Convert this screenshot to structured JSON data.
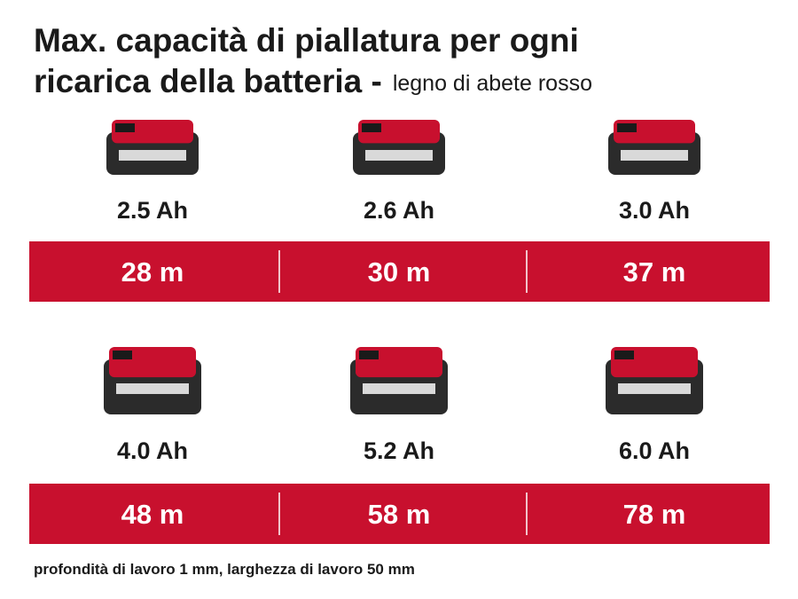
{
  "title_lines": [
    "Max. capacità di piallatura per ogni",
    "ricarica della batteria -"
  ],
  "subtitle": "legno di abete rosso",
  "rows": [
    {
      "items": [
        {
          "capacity": "2.5 Ah",
          "result": "28 m"
        },
        {
          "capacity": "2.6 Ah",
          "result": "30 m"
        },
        {
          "capacity": "3.0 Ah",
          "result": "37 m"
        }
      ]
    },
    {
      "items": [
        {
          "capacity": "4.0 Ah",
          "result": "48 m"
        },
        {
          "capacity": "5.2 Ah",
          "result": "58 m"
        },
        {
          "capacity": "6.0 Ah",
          "result": "78 m"
        }
      ]
    }
  ],
  "footnote": "profondità di lavoro 1 mm, larghezza di lavoro 50 mm"
}
